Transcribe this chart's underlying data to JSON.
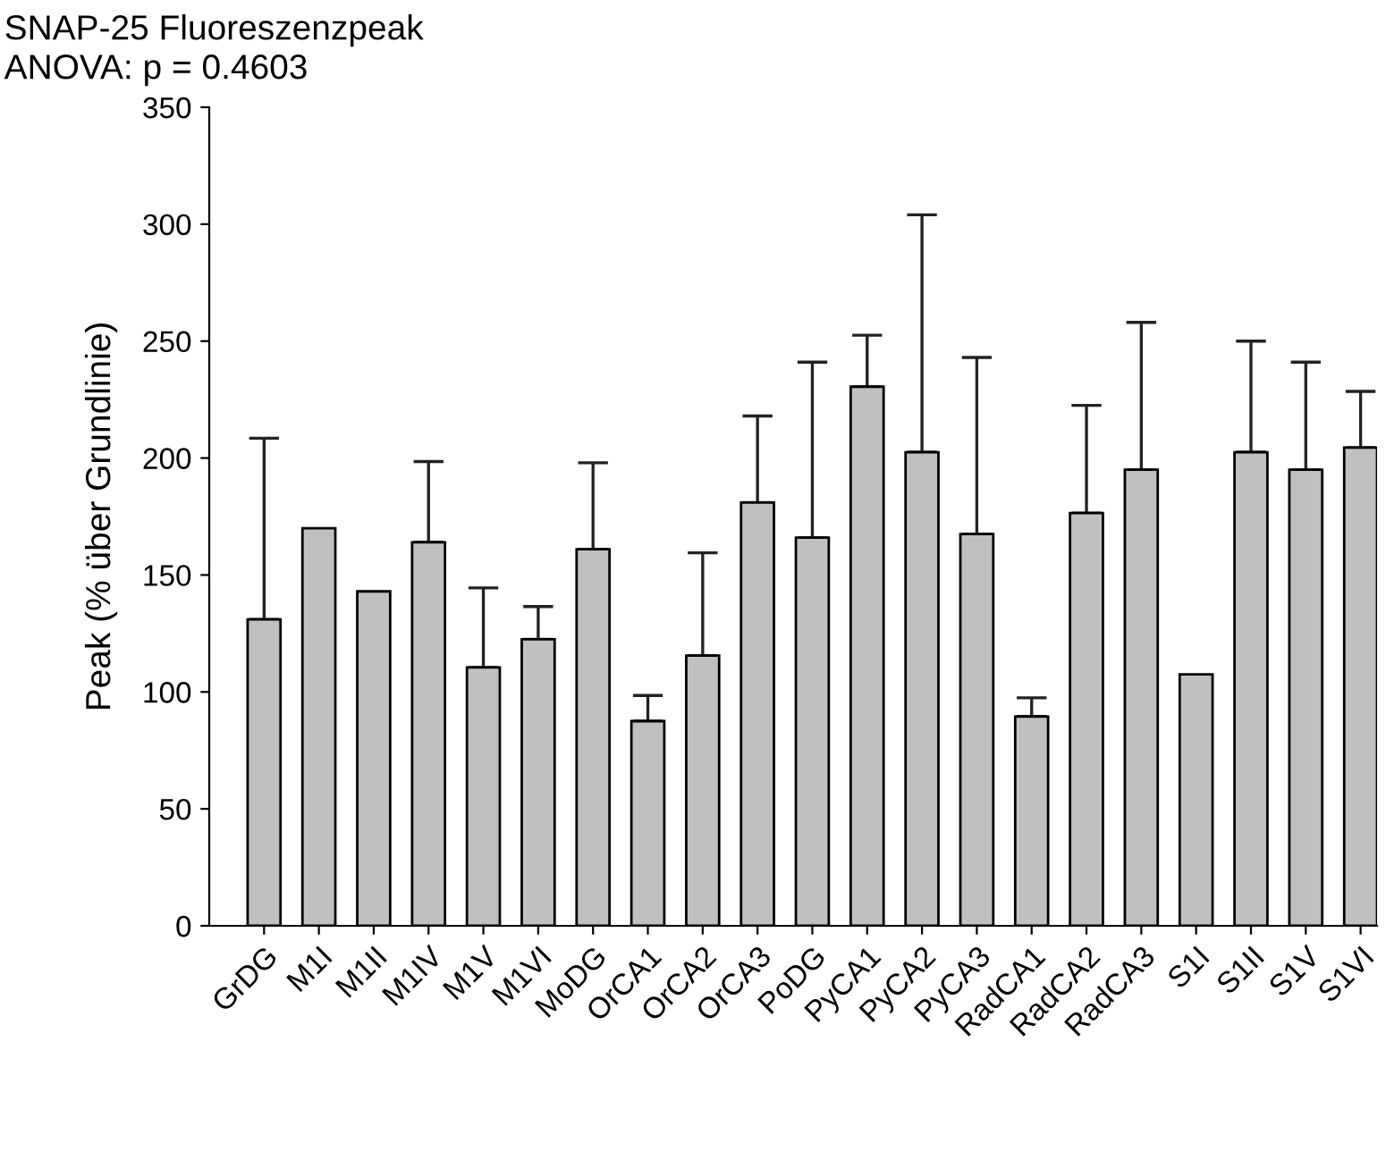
{
  "chart_data": {
    "type": "bar",
    "title": "SNAP-25 Fluoreszenzpeak",
    "subtitle": "ANOVA: p = 0.4603",
    "ylabel": "Peak (% über Grundlinie)",
    "categories": [
      "GrDG",
      "M1I",
      "M1II",
      "M1IV",
      "M1V",
      "M1VI",
      "MoDG",
      "OrCA1",
      "OrCA2",
      "OrCA3",
      "PoDG",
      "PyCA1",
      "PyCA2",
      "PyCA3",
      "RadCA1",
      "RadCA2",
      "RadCA3",
      "S1I",
      "S1II",
      "S1V",
      "S1VI"
    ],
    "values": [
      131,
      170,
      143,
      164,
      110.5,
      122.5,
      161,
      87.5,
      115.5,
      181,
      166,
      230.5,
      202.5,
      167.5,
      89.5,
      176.5,
      195,
      107.5,
      202.5,
      195,
      204.5
    ],
    "errors": [
      [
        131,
        208.5
      ],
      null,
      null,
      [
        164,
        198.5
      ],
      [
        110.5,
        144.5
      ],
      [
        122.5,
        136.5
      ],
      [
        161,
        198
      ],
      [
        87.5,
        98.5
      ],
      [
        115.5,
        159.5
      ],
      [
        181,
        218
      ],
      [
        166,
        241
      ],
      [
        230.5,
        252.5
      ],
      [
        202.5,
        304
      ],
      [
        167.5,
        243
      ],
      [
        89.5,
        97.5
      ],
      [
        176.5,
        222.5
      ],
      [
        195,
        258
      ],
      null,
      [
        202.5,
        250
      ],
      [
        195,
        241
      ],
      [
        204.5,
        228.5
      ]
    ],
    "color": "#c0c0c0",
    "ylim": [
      0,
      350
    ],
    "yticks": [
      0,
      50,
      100,
      150,
      200,
      250,
      300,
      350
    ],
    "grid": false,
    "legend": false
  }
}
